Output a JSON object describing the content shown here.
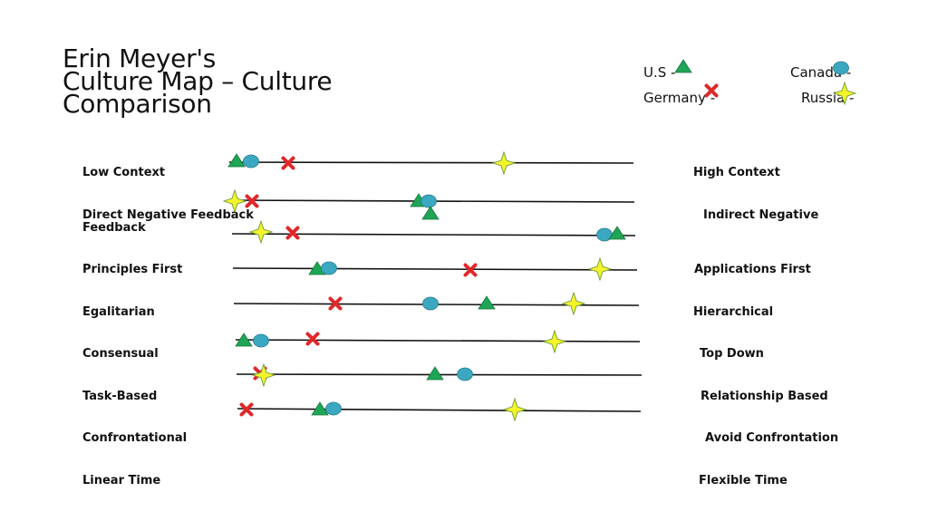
{
  "title": {
    "line1": "Erin Meyer's",
    "line2": "Culture Map – Culture",
    "line3": "Comparison"
  },
  "legend": {
    "us": "U.S -",
    "canada": "Canada -",
    "germany": "Germany -",
    "russia": "Russia -"
  },
  "marker_shapes": {
    "us": "green-triangle",
    "canada": "teal-ellipse",
    "germany": "red-x",
    "russia": "yellow-star"
  },
  "colors": {
    "us": "#1ea555",
    "canada": "#3aa8c0",
    "germany": "#e0282a",
    "russia": "#f4f42a"
  },
  "scales": [
    {
      "left": "Low Context",
      "right": "High Context"
    },
    {
      "left": "Direct Negative Feedback",
      "left2": "Feedback",
      "right": "Indirect Negative"
    },
    {
      "left": "Principles First",
      "right": "Applications First"
    },
    {
      "left": "Egalitarian",
      "right": "Hierarchical"
    },
    {
      "left": "Consensual",
      "right": "Top Down"
    },
    {
      "left": "Task-Based",
      "right": "Relationship Based"
    },
    {
      "left": "Confrontational",
      "right": "Avoid Confrontation"
    },
    {
      "left": "Linear Time",
      "right": "Flexible Time"
    }
  ]
}
